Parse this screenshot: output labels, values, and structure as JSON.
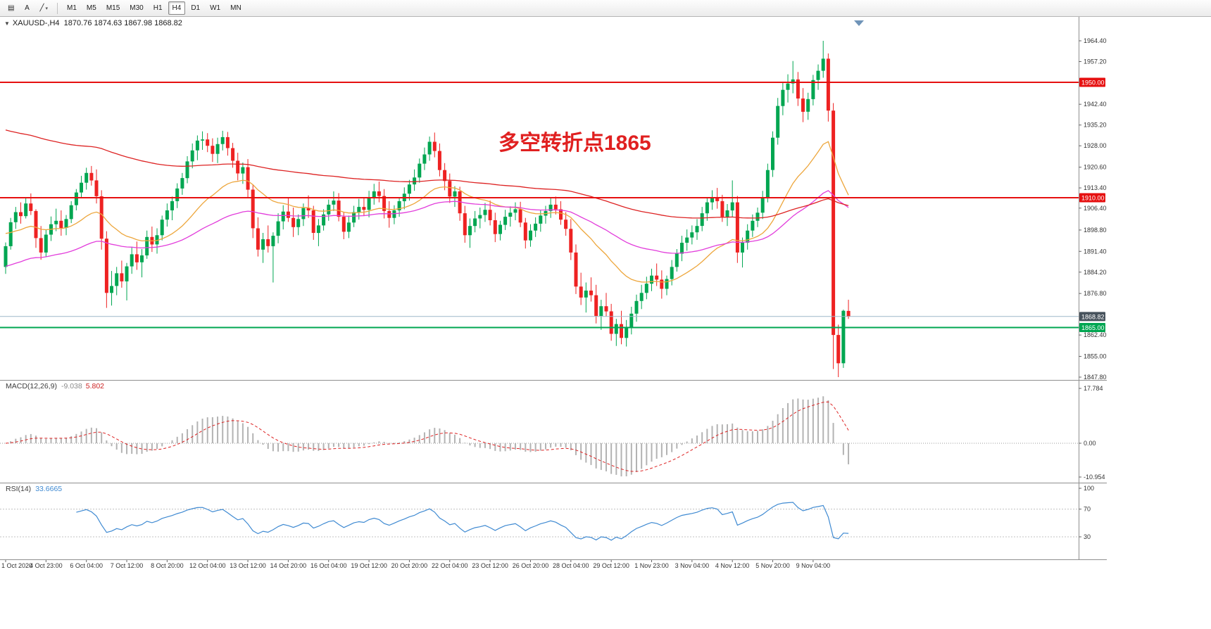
{
  "toolbar": {
    "tools": [
      {
        "name": "chart-style-tool",
        "glyph": "▤"
      },
      {
        "name": "text-tool",
        "glyph": "A"
      },
      {
        "name": "line-tool",
        "glyph": "╱",
        "caret": "▾"
      }
    ],
    "timeframes": [
      "M1",
      "M5",
      "M15",
      "M30",
      "H1",
      "H4",
      "D1",
      "W1",
      "MN"
    ],
    "active_timeframe": "H4"
  },
  "chart": {
    "menu_icon": "▼",
    "symbol_label": "XAUUSD-,H4",
    "ohlc_text": "1870.76 1874.63 1867.98 1868.82"
  },
  "chart_data": {
    "type": "candlestick",
    "symbol": "XAUUSD-",
    "timeframe": "H4",
    "current_candle": {
      "open": 1870.76,
      "high": 1874.63,
      "low": 1867.98,
      "close": 1868.82
    },
    "annotation": {
      "text": "多空转折点1865",
      "color": "#e02020"
    },
    "colors": {
      "up": "#00a651",
      "down": "#ee2222",
      "ma_fast": "#eda63c",
      "ma_mid": "#e23ddb",
      "ma_slow": "#dd2222",
      "hline_red": "#e61010",
      "hline_green": "#00a651",
      "bid_line": "#9db8c8",
      "bid_tag": "#47525c",
      "macd_hist": "#b3b3b3",
      "macd_signal": "#dd2222",
      "rsi_line": "#3f8ad2"
    },
    "hlines": [
      {
        "price": 1950.0,
        "label": "1950.00",
        "color": "#e61010"
      },
      {
        "price": 1910.0,
        "label": "1910.00",
        "color": "#e61010"
      },
      {
        "price": 1865.0,
        "label": "1865.00",
        "color": "#00a651"
      }
    ],
    "bid": {
      "price": 1868.82,
      "label": "1868.82"
    },
    "y_ticks": [
      1964.4,
      1957.2,
      1942.4,
      1935.2,
      1928.0,
      1920.6,
      1913.4,
      1906.4,
      1898.8,
      1891.4,
      1884.2,
      1876.8,
      1862.4,
      1855.0,
      1847.8
    ],
    "x_labels": [
      "1 Oct 2020",
      "4 Oct 23:00",
      "6 Oct 04:00",
      "7 Oct 12:00",
      "8 Oct 20:00",
      "12 Oct 04:00",
      "13 Oct 12:00",
      "14 Oct 20:00",
      "16 Oct 04:00",
      "19 Oct 12:00",
      "20 Oct 20:00",
      "22 Oct 04:00",
      "23 Oct 12:00",
      "26 Oct 20:00",
      "28 Oct 04:00",
      "29 Oct 12:00",
      "1 Nov 23:00",
      "3 Nov 04:00",
      "4 Nov 12:00",
      "5 Nov 20:00",
      "9 Nov 04:00"
    ],
    "moving_averages": [
      {
        "name": "ma-fast",
        "period": 24,
        "seed": 1898,
        "color": "#eda63c"
      },
      {
        "name": "ma-mid",
        "period": 62,
        "seed": 1886,
        "color": "#e23ddb"
      },
      {
        "name": "ma-slow",
        "period": 150,
        "seed": 1934,
        "color": "#dd2222"
      }
    ],
    "indicators": {
      "macd": {
        "label": "MACD(12,26,9)",
        "main_value": "-9.038",
        "signal_value": "5.802",
        "fast": 12,
        "slow": 26,
        "signal": 9,
        "axis_labels": [
          "17.784",
          "0.00",
          "-10.954"
        ],
        "axis_values": [
          17.784,
          0,
          -10.954
        ]
      },
      "rsi": {
        "label": "RSI(14)",
        "value": "33.6665",
        "period": 14,
        "axis_labels": [
          "100",
          "70",
          "30"
        ],
        "axis_values": [
          100,
          70,
          30
        ],
        "levels": [
          70,
          30
        ]
      }
    },
    "candles": [
      [
        1886,
        1894.5,
        1883.6,
        1893.2
      ],
      [
        1893.2,
        1903,
        1892,
        1901.5
      ],
      [
        1901.5,
        1906.8,
        1899.2,
        1905
      ],
      [
        1905,
        1908.4,
        1901,
        1903.6
      ],
      [
        1903.6,
        1910.2,
        1902.8,
        1908
      ],
      [
        1908,
        1911.5,
        1904,
        1905.4
      ],
      [
        1905.4,
        1906,
        1892.6,
        1896
      ],
      [
        1896,
        1900.2,
        1888.5,
        1891
      ],
      [
        1891,
        1898.8,
        1889.4,
        1897.2
      ],
      [
        1897.2,
        1903.5,
        1895,
        1900.8
      ],
      [
        1900.8,
        1906.2,
        1898.4,
        1902
      ],
      [
        1902,
        1905.6,
        1896.8,
        1899.5
      ],
      [
        1899.5,
        1904,
        1897,
        1902.6
      ],
      [
        1902.6,
        1908.8,
        1901.2,
        1907.4
      ],
      [
        1907.4,
        1913,
        1905.6,
        1911.8
      ],
      [
        1911.8,
        1917.6,
        1910,
        1915.2
      ],
      [
        1915.2,
        1920.4,
        1912.8,
        1918.6
      ],
      [
        1918.6,
        1921,
        1914.2,
        1916
      ],
      [
        1916,
        1919.8,
        1908,
        1910.5
      ],
      [
        1910.5,
        1912.6,
        1892,
        1895.8
      ],
      [
        1895.8,
        1898.4,
        1871.8,
        1877
      ],
      [
        1877,
        1884.6,
        1872.6,
        1879.4
      ],
      [
        1879.4,
        1886,
        1876.2,
        1883.8
      ],
      [
        1883.8,
        1888.2,
        1878.8,
        1881
      ],
      [
        1881,
        1887.4,
        1874.4,
        1886.2
      ],
      [
        1886.2,
        1893,
        1883.6,
        1890.4
      ],
      [
        1890.4,
        1894.8,
        1885,
        1887.6
      ],
      [
        1887.6,
        1892.2,
        1882.4,
        1890
      ],
      [
        1890,
        1898.6,
        1888.8,
        1896.4
      ],
      [
        1896.4,
        1900,
        1891.2,
        1893.8
      ],
      [
        1893.8,
        1899.4,
        1890.6,
        1897
      ],
      [
        1897,
        1903.8,
        1895.2,
        1902.4
      ],
      [
        1902.4,
        1908,
        1900,
        1905.6
      ],
      [
        1905.6,
        1910.4,
        1902.2,
        1908.8
      ],
      [
        1908.8,
        1915,
        1906.4,
        1913.2
      ],
      [
        1913.2,
        1918.6,
        1911,
        1916.8
      ],
      [
        1916.8,
        1924.4,
        1915,
        1922.6
      ],
      [
        1922.6,
        1928.8,
        1920.2,
        1926.4
      ],
      [
        1926.4,
        1931.6,
        1923,
        1929.8
      ],
      [
        1929.8,
        1933,
        1926.6,
        1930.2
      ],
      [
        1930.2,
        1932.4,
        1925.8,
        1928
      ],
      [
        1928,
        1930.6,
        1922.4,
        1925.2
      ],
      [
        1925.2,
        1930.8,
        1922,
        1928.6
      ],
      [
        1928.6,
        1933.2,
        1926.4,
        1931
      ],
      [
        1931,
        1932.8,
        1924.6,
        1927.2
      ],
      [
        1927.2,
        1929,
        1920.4,
        1922.8
      ],
      [
        1922.8,
        1925.6,
        1916,
        1918.4
      ],
      [
        1918.4,
        1922.2,
        1914.8,
        1920.6
      ],
      [
        1920.6,
        1923.4,
        1910.2,
        1912.8
      ],
      [
        1912.8,
        1914.6,
        1896,
        1899.4
      ],
      [
        1899.4,
        1903.2,
        1889.6,
        1892
      ],
      [
        1892,
        1897.8,
        1887.4,
        1895.6
      ],
      [
        1895.6,
        1900.4,
        1891,
        1893.2
      ],
      [
        1893.2,
        1898,
        1880.6,
        1896.8
      ],
      [
        1896.8,
        1904.6,
        1894.2,
        1901.8
      ],
      [
        1901.8,
        1907.4,
        1899,
        1905.2
      ],
      [
        1905.2,
        1909.8,
        1901.6,
        1903
      ],
      [
        1903,
        1906.6,
        1896.4,
        1899.8
      ],
      [
        1899.8,
        1904.2,
        1897,
        1902.6
      ],
      [
        1902.6,
        1908,
        1900.2,
        1906.4
      ],
      [
        1906.4,
        1910.8,
        1903,
        1905.6
      ],
      [
        1905.6,
        1907.2,
        1895.4,
        1897.8
      ],
      [
        1897.8,
        1902.6,
        1893.2,
        1900.4
      ],
      [
        1900.4,
        1906,
        1898.6,
        1904.2
      ],
      [
        1904.2,
        1909.4,
        1902,
        1907.6
      ],
      [
        1907.6,
        1912.2,
        1905.4,
        1909
      ],
      [
        1909,
        1911.6,
        1901.8,
        1903.4
      ],
      [
        1903.4,
        1905,
        1895.6,
        1898.2
      ],
      [
        1898.2,
        1903.8,
        1896,
        1901.4
      ],
      [
        1901.4,
        1907.2,
        1899.8,
        1905
      ],
      [
        1905,
        1909.6,
        1902.4,
        1906.8
      ],
      [
        1906.8,
        1910,
        1903.6,
        1905.8
      ],
      [
        1905.8,
        1912.4,
        1903.2,
        1910
      ],
      [
        1910,
        1914.8,
        1907.6,
        1912.2
      ],
      [
        1912.2,
        1915.6,
        1908.4,
        1910.6
      ],
      [
        1910.6,
        1913,
        1902.8,
        1905.4
      ],
      [
        1905.4,
        1908.8,
        1899.6,
        1903
      ],
      [
        1903,
        1907.4,
        1900.8,
        1905.6
      ],
      [
        1905.6,
        1910.2,
        1903.4,
        1908.8
      ],
      [
        1908.8,
        1913.6,
        1906,
        1911.4
      ],
      [
        1911.4,
        1916.2,
        1909,
        1914.6
      ],
      [
        1914.6,
        1919.8,
        1912.4,
        1917
      ],
      [
        1917,
        1923.6,
        1915.2,
        1921.8
      ],
      [
        1921.8,
        1927.4,
        1919.6,
        1925
      ],
      [
        1925,
        1931.2,
        1922.8,
        1929.4
      ],
      [
        1929.4,
        1932.6,
        1924,
        1926.2
      ],
      [
        1926.2,
        1928.8,
        1917.4,
        1919.6
      ],
      [
        1919.6,
        1922,
        1912.6,
        1915.8
      ],
      [
        1915.8,
        1918.4,
        1908.2,
        1910.4
      ],
      [
        1910.4,
        1914,
        1906.8,
        1912.2
      ],
      [
        1912.2,
        1913.8,
        1902,
        1904.6
      ],
      [
        1904.6,
        1907.2,
        1894.4,
        1897
      ],
      [
        1897,
        1902.8,
        1892.6,
        1900.2
      ],
      [
        1900.2,
        1905.4,
        1898,
        1902.8
      ],
      [
        1902.8,
        1906.6,
        1899.4,
        1904
      ],
      [
        1904,
        1908.2,
        1901.6,
        1905.8
      ],
      [
        1905.8,
        1909,
        1900.4,
        1902.2
      ],
      [
        1902.2,
        1904.8,
        1894.6,
        1897.4
      ],
      [
        1897.4,
        1902,
        1895.2,
        1900.6
      ],
      [
        1900.6,
        1905.8,
        1898.8,
        1903.4
      ],
      [
        1903.4,
        1907,
        1900,
        1904.8
      ],
      [
        1904.8,
        1908.4,
        1902.2,
        1906
      ],
      [
        1906,
        1908.6,
        1899.8,
        1901.4
      ],
      [
        1901.4,
        1903,
        1892.4,
        1895.2
      ],
      [
        1895.2,
        1900.8,
        1893,
        1898.6
      ],
      [
        1898.6,
        1903.2,
        1896.4,
        1901
      ],
      [
        1901,
        1905.6,
        1898.2,
        1903.8
      ],
      [
        1903.8,
        1907.2,
        1901,
        1905.4
      ],
      [
        1905.4,
        1909.8,
        1903,
        1907.6
      ],
      [
        1907.6,
        1910.4,
        1904.2,
        1906
      ],
      [
        1906,
        1908.8,
        1900.6,
        1902.4
      ],
      [
        1902.4,
        1905,
        1896.8,
        1899.2
      ],
      [
        1899.2,
        1902.6,
        1888.4,
        1891
      ],
      [
        1891,
        1893.8,
        1876.6,
        1879.2
      ],
      [
        1879.2,
        1884,
        1872.8,
        1875.4
      ],
      [
        1875.4,
        1880.6,
        1870.2,
        1877.8
      ],
      [
        1877.8,
        1882.4,
        1874,
        1876.2
      ],
      [
        1876.2,
        1879.8,
        1866.4,
        1869
      ],
      [
        1869,
        1874.6,
        1864.2,
        1872.4
      ],
      [
        1872.4,
        1877,
        1868.8,
        1870.6
      ],
      [
        1870.6,
        1873.2,
        1860.4,
        1862.8
      ],
      [
        1862.8,
        1868,
        1858.6,
        1866.2
      ],
      [
        1866.2,
        1870.8,
        1859.2,
        1861.4
      ],
      [
        1861.4,
        1867.6,
        1858.4,
        1865
      ],
      [
        1865,
        1872.2,
        1862.6,
        1869.8
      ],
      [
        1869.8,
        1876.4,
        1867,
        1874.2
      ],
      [
        1874.2,
        1879.8,
        1871.4,
        1877
      ],
      [
        1877,
        1882.6,
        1874.8,
        1880.2
      ],
      [
        1880.2,
        1885.4,
        1877.6,
        1883
      ],
      [
        1883,
        1887.2,
        1879.4,
        1881.6
      ],
      [
        1881.6,
        1884.8,
        1875,
        1878.4
      ],
      [
        1878.4,
        1883,
        1876.2,
        1881.8
      ],
      [
        1881.8,
        1888.4,
        1879.6,
        1886
      ],
      [
        1886,
        1892.2,
        1884.4,
        1890.6
      ],
      [
        1890.6,
        1896.8,
        1888,
        1894.4
      ],
      [
        1894.4,
        1899,
        1891.6,
        1896.2
      ],
      [
        1896.2,
        1900.4,
        1893.8,
        1898
      ],
      [
        1898,
        1902.6,
        1895.4,
        1900.2
      ],
      [
        1900.2,
        1906.8,
        1898.4,
        1904.6
      ],
      [
        1904.6,
        1910.2,
        1902,
        1908.4
      ],
      [
        1908.4,
        1912.6,
        1905.8,
        1910
      ],
      [
        1910,
        1913.4,
        1906.2,
        1908.8
      ],
      [
        1908.8,
        1911,
        1901.6,
        1903.4
      ],
      [
        1903.4,
        1907.8,
        1900.2,
        1905.6
      ],
      [
        1905.6,
        1916,
        1903.2,
        1908.4
      ],
      [
        1908.4,
        1910.6,
        1887.4,
        1891
      ],
      [
        1891,
        1896.2,
        1885.8,
        1894.4
      ],
      [
        1894.4,
        1900.8,
        1892,
        1898.6
      ],
      [
        1898.6,
        1904.2,
        1896.4,
        1902
      ],
      [
        1902,
        1906.6,
        1899.8,
        1904.8
      ],
      [
        1904.8,
        1912.4,
        1902.6,
        1910.2
      ],
      [
        1910.2,
        1921.8,
        1908.4,
        1919.6
      ],
      [
        1919.6,
        1933,
        1917.2,
        1930.8
      ],
      [
        1930.8,
        1944.6,
        1928.4,
        1941.8
      ],
      [
        1941.8,
        1950.2,
        1938.6,
        1947.4
      ],
      [
        1947.4,
        1952.8,
        1943,
        1949.6
      ],
      [
        1949.6,
        1957.4,
        1946.2,
        1951
      ],
      [
        1951,
        1953.6,
        1941.8,
        1944.4
      ],
      [
        1944.4,
        1948,
        1936.2,
        1939.8
      ],
      [
        1939.8,
        1946.4,
        1937,
        1944.2
      ],
      [
        1944.2,
        1952.6,
        1942,
        1950.8
      ],
      [
        1950.8,
        1956.2,
        1947.4,
        1954
      ],
      [
        1954,
        1964.4,
        1951.6,
        1958.2
      ],
      [
        1958.2,
        1960,
        1936.4,
        1940.2
      ],
      [
        1940.2,
        1942.8,
        1850.6,
        1862.4
      ],
      [
        1862.4,
        1866,
        1847.8,
        1852.6
      ],
      [
        1852.6,
        1871.2,
        1851,
        1870.8
      ],
      [
        1870.76,
        1874.63,
        1867.98,
        1868.82
      ]
    ]
  }
}
